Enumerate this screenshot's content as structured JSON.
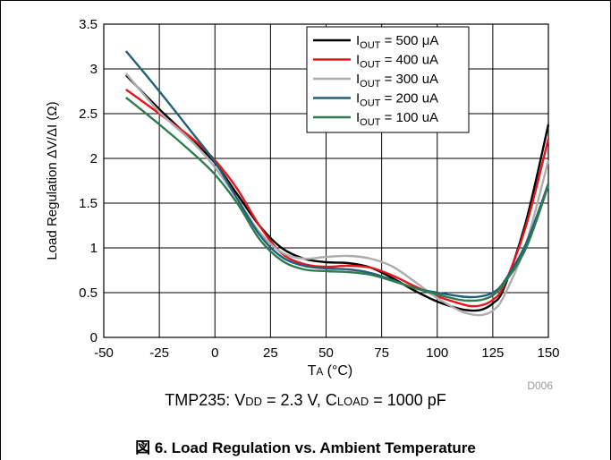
{
  "chart_data": {
    "type": "line",
    "xlabel": {
      "base": "T",
      "sub": "A",
      "rest": " (°C)"
    },
    "ylabel": "Load Regulation ΔV/ΔI (Ω)",
    "xlim": [
      -50,
      150
    ],
    "ylim": [
      0,
      3.5
    ],
    "xticks": [
      "-50",
      "-25",
      "0",
      "25",
      "50",
      "75",
      "100",
      "125",
      "150"
    ],
    "yticks": [
      "0",
      "0.5",
      "1",
      "1.5",
      "2",
      "2.5",
      "3",
      "3.5"
    ],
    "grid": true,
    "legend_position": "top-right",
    "series": [
      {
        "name": "I_OUT = 500 μA",
        "label": {
          "pre": "I",
          "sub": "OUT",
          "post": " = 500 μA"
        },
        "color": "#000000",
        "points": [
          [
            -40,
            2.93
          ],
          [
            -25,
            2.55
          ],
          [
            -10,
            2.2
          ],
          [
            0,
            1.95
          ],
          [
            10,
            1.6
          ],
          [
            20,
            1.25
          ],
          [
            30,
            1.0
          ],
          [
            40,
            0.88
          ],
          [
            50,
            0.84
          ],
          [
            60,
            0.83
          ],
          [
            70,
            0.78
          ],
          [
            80,
            0.66
          ],
          [
            90,
            0.52
          ],
          [
            100,
            0.4
          ],
          [
            110,
            0.32
          ],
          [
            115,
            0.3
          ],
          [
            120,
            0.31
          ],
          [
            125,
            0.38
          ],
          [
            130,
            0.55
          ],
          [
            140,
            1.3
          ],
          [
            150,
            2.38
          ]
        ]
      },
      {
        "name": "I_OUT = 400 uA",
        "label": {
          "pre": "I",
          "sub": "OUT",
          "post": " = 400 uA"
        },
        "color": "#e8141b",
        "points": [
          [
            -40,
            2.77
          ],
          [
            -25,
            2.5
          ],
          [
            -10,
            2.22
          ],
          [
            0,
            1.98
          ],
          [
            10,
            1.66
          ],
          [
            20,
            1.25
          ],
          [
            30,
            0.94
          ],
          [
            40,
            0.82
          ],
          [
            50,
            0.79
          ],
          [
            60,
            0.8
          ],
          [
            70,
            0.78
          ],
          [
            80,
            0.69
          ],
          [
            90,
            0.57
          ],
          [
            100,
            0.46
          ],
          [
            110,
            0.38
          ],
          [
            115,
            0.35
          ],
          [
            120,
            0.36
          ],
          [
            125,
            0.42
          ],
          [
            130,
            0.58
          ],
          [
            140,
            1.25
          ],
          [
            150,
            2.22
          ]
        ]
      },
      {
        "name": "I_OUT = 300 uA",
        "label": {
          "pre": "I",
          "sub": "OUT",
          "post": " = 300 uA"
        },
        "color": "#adadad",
        "points": [
          [
            -40,
            2.95
          ],
          [
            -25,
            2.52
          ],
          [
            -10,
            2.18
          ],
          [
            0,
            1.9
          ],
          [
            10,
            1.55
          ],
          [
            20,
            1.18
          ],
          [
            30,
            0.95
          ],
          [
            40,
            0.88
          ],
          [
            50,
            0.9
          ],
          [
            60,
            0.91
          ],
          [
            70,
            0.88
          ],
          [
            80,
            0.79
          ],
          [
            90,
            0.62
          ],
          [
            100,
            0.44
          ],
          [
            110,
            0.3
          ],
          [
            115,
            0.26
          ],
          [
            120,
            0.25
          ],
          [
            125,
            0.3
          ],
          [
            130,
            0.46
          ],
          [
            140,
            1.05
          ],
          [
            150,
            1.98
          ]
        ]
      },
      {
        "name": "I_OUT = 200 uA",
        "label": {
          "pre": "I",
          "sub": "OUT",
          "post": " = 200 uA"
        },
        "color": "#22607a",
        "points": [
          [
            -40,
            3.2
          ],
          [
            -25,
            2.75
          ],
          [
            -10,
            2.28
          ],
          [
            0,
            1.96
          ],
          [
            10,
            1.55
          ],
          [
            20,
            1.15
          ],
          [
            30,
            0.9
          ],
          [
            40,
            0.8
          ],
          [
            50,
            0.77
          ],
          [
            60,
            0.76
          ],
          [
            70,
            0.72
          ],
          [
            80,
            0.64
          ],
          [
            90,
            0.55
          ],
          [
            100,
            0.5
          ],
          [
            110,
            0.46
          ],
          [
            115,
            0.45
          ],
          [
            120,
            0.46
          ],
          [
            125,
            0.5
          ],
          [
            130,
            0.62
          ],
          [
            140,
            1.05
          ],
          [
            150,
            1.72
          ]
        ]
      },
      {
        "name": "I_OUT = 100 uA",
        "label": {
          "pre": "I",
          "sub": "OUT",
          "post": " = 100 uA"
        },
        "color": "#2e7b4e",
        "points": [
          [
            -40,
            2.68
          ],
          [
            -25,
            2.38
          ],
          [
            -10,
            2.06
          ],
          [
            0,
            1.82
          ],
          [
            10,
            1.5
          ],
          [
            20,
            1.1
          ],
          [
            30,
            0.86
          ],
          [
            40,
            0.76
          ],
          [
            50,
            0.74
          ],
          [
            60,
            0.73
          ],
          [
            70,
            0.7
          ],
          [
            80,
            0.63
          ],
          [
            90,
            0.55
          ],
          [
            100,
            0.48
          ],
          [
            110,
            0.42
          ],
          [
            115,
            0.41
          ],
          [
            120,
            0.42
          ],
          [
            125,
            0.47
          ],
          [
            130,
            0.6
          ],
          [
            140,
            1.0
          ],
          [
            150,
            1.7
          ]
        ]
      }
    ],
    "code": "D006",
    "caption": {
      "p1": "TMP235: V",
      "s1": "DD",
      "p2": " = 2.3 V, C",
      "s2": "LOAD",
      "p3": " = 1000 pF"
    },
    "title": "図 6. Load Regulation vs. Ambient Temperature"
  }
}
